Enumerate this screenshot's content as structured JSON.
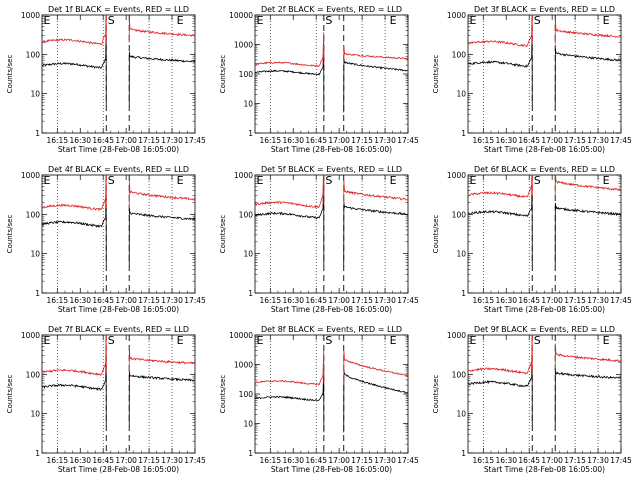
{
  "chart_data": {
    "type": "line",
    "x_tick_labels": [
      "16:15",
      "16:30",
      "16:45",
      "17:00",
      "17:15",
      "17:30",
      "17:45"
    ],
    "x_tick_minutes": [
      975,
      990,
      1005,
      1020,
      1035,
      1050,
      1065
    ],
    "xlim_minutes": [
      965,
      1065
    ],
    "y_scale": "log",
    "ylim": [
      1,
      1000
    ],
    "ylim_panel_2": [
      1,
      10000
    ],
    "ylim_panel_8": [
      1,
      10000
    ],
    "y_tick_values": [
      1,
      10,
      100,
      1000,
      10000
    ],
    "y_tick_labels": [
      "1",
      "10",
      "100",
      "1000",
      "10000"
    ],
    "ylabel": "Counts/sec",
    "xlabel": "Start Time (28-Feb-08 16:05:00)",
    "series_names": [
      "Events (BLACK)",
      "LLD (RED)"
    ],
    "series_colors": {
      "events": "#000000",
      "lld": "#e02020"
    },
    "marker_labels": {
      "end": "E",
      "start": "S"
    },
    "dotted_line_minutes": [
      975,
      1005,
      1035,
      1050
    ],
    "panels": [
      {
        "title": "Det 1f BLACK = Events, RED = LLD",
        "ymax": 1000,
        "events_pre": 55,
        "lld_pre": 220,
        "gap_start": 1007,
        "gap_end": 1022,
        "events_post": 90,
        "lld_post": 440,
        "events_end": 65,
        "lld_end": 300
      },
      {
        "title": "Det 2f BLACK = Events, RED = LLD",
        "ymax": 10000,
        "events_pre": 120,
        "lld_pre": 230,
        "gap_start": 1010,
        "gap_end": 1023,
        "events_post": 260,
        "lld_post": 500,
        "events_end": 130,
        "lld_end": 330
      },
      {
        "title": "Det 3f BLACK = Events, RED = LLD",
        "ymax": 1000,
        "events_pre": 60,
        "lld_pre": 200,
        "gap_start": 1007,
        "gap_end": 1022,
        "events_post": 110,
        "lld_post": 420,
        "events_end": 70,
        "lld_end": 280
      },
      {
        "title": "Det 4f BLACK = Events, RED = LLD",
        "ymax": 1000,
        "events_pre": 60,
        "lld_pre": 160,
        "gap_start": 1007,
        "gap_end": 1022,
        "events_post": 110,
        "lld_post": 380,
        "events_end": 75,
        "lld_end": 240
      },
      {
        "title": "Det 5f BLACK = Events, RED = LLD",
        "ymax": 1000,
        "events_pre": 100,
        "lld_pre": 190,
        "gap_start": 1010,
        "gap_end": 1023,
        "events_post": 160,
        "lld_post": 400,
        "events_end": 100,
        "lld_end": 240
      },
      {
        "title": "Det 6f BLACK = Events, RED = LLD",
        "ymax": 1000,
        "events_pre": 110,
        "lld_pre": 330,
        "gap_start": 1007,
        "gap_end": 1022,
        "events_post": 150,
        "lld_post": 700,
        "events_end": 100,
        "lld_end": 420
      },
      {
        "title": "Det 7f BLACK = Events, RED = LLD",
        "ymax": 1000,
        "events_pre": 50,
        "lld_pre": 120,
        "gap_start": 1007,
        "gap_end": 1022,
        "events_post": 95,
        "lld_post": 260,
        "events_end": 70,
        "lld_end": 190
      },
      {
        "title": "Det 8f BLACK = Events, RED = LLD",
        "ymax": 10000,
        "events_pre": 75,
        "lld_pre": 260,
        "gap_start": 1010,
        "gap_end": 1023,
        "events_post": 500,
        "lld_post": 1600,
        "events_end": 110,
        "lld_end": 420
      },
      {
        "title": "Det 9f BLACK = Events, RED = LLD",
        "ymax": 1000,
        "events_pre": 60,
        "lld_pre": 130,
        "gap_start": 1007,
        "gap_end": 1022,
        "events_post": 110,
        "lld_post": 330,
        "events_end": 80,
        "lld_end": 220
      }
    ]
  }
}
